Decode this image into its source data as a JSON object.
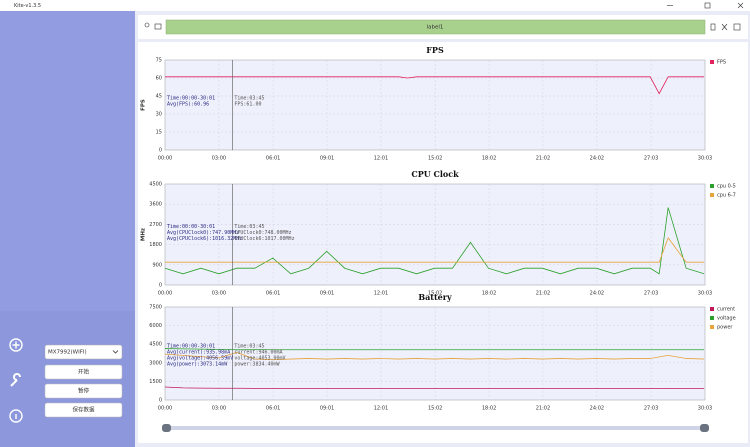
{
  "window": {
    "title": "Kite-v1.3.5"
  },
  "toolbar": {
    "label": "label1"
  },
  "sidebar": {
    "device": "MX7992(WIFI)",
    "buttons": [
      "开始",
      "暂停",
      "保存数据"
    ]
  },
  "chart_data": [
    {
      "type": "line",
      "title": "FPS",
      "ylabel": "FPS",
      "xlim": [
        0,
        1803
      ],
      "ylim": [
        0,
        75
      ],
      "yticks": [
        0,
        15,
        30,
        45,
        60,
        75
      ],
      "xticks": [
        {
          "value": 0,
          "label": "00:00"
        },
        {
          "value": 180,
          "label": "03:00"
        },
        {
          "value": 361,
          "label": "06:01"
        },
        {
          "value": 541,
          "label": "09:01"
        },
        {
          "value": 721,
          "label": "12:01"
        },
        {
          "value": 902,
          "label": "15:02"
        },
        {
          "value": 1082,
          "label": "18:02"
        },
        {
          "value": 1262,
          "label": "21:02"
        },
        {
          "value": 1442,
          "label": "24:02"
        },
        {
          "value": 1623,
          "label": "27:03"
        },
        {
          "value": 1803,
          "label": "30:03"
        }
      ],
      "grid": true,
      "cursor_x": 225,
      "stats": [
        "Time:00:00-30:01",
        "Avg(FPS):60.96"
      ],
      "cursor_label": [
        "Time:03:45",
        "FPS:61.00"
      ],
      "x": [
        0,
        60,
        120,
        180,
        240,
        300,
        360,
        420,
        480,
        540,
        600,
        660,
        720,
        780,
        810,
        840,
        900,
        960,
        1020,
        1080,
        1140,
        1200,
        1260,
        1320,
        1380,
        1440,
        1500,
        1560,
        1620,
        1650,
        1680,
        1740,
        1800
      ],
      "series": [
        {
          "name": "FPS",
          "color": "#e0245e",
          "values": [
            61,
            61,
            61,
            61,
            61,
            61,
            61,
            61,
            61,
            61,
            61,
            61,
            61,
            61,
            60,
            61,
            61,
            61,
            61,
            61,
            61,
            61,
            61,
            61,
            61,
            61,
            61,
            61,
            61,
            47,
            61,
            61,
            61
          ]
        }
      ]
    },
    {
      "type": "line",
      "title": "CPU Clock",
      "ylabel": "MHz",
      "xlim": [
        0,
        1803
      ],
      "ylim": [
        0,
        4500
      ],
      "yticks": [
        0,
        900,
        1800,
        2700,
        3600,
        4500
      ],
      "xticks": [
        {
          "value": 0,
          "label": "00:00"
        },
        {
          "value": 180,
          "label": "03:00"
        },
        {
          "value": 361,
          "label": "06:01"
        },
        {
          "value": 541,
          "label": "09:01"
        },
        {
          "value": 721,
          "label": "12:01"
        },
        {
          "value": 902,
          "label": "15:02"
        },
        {
          "value": 1082,
          "label": "18:02"
        },
        {
          "value": 1262,
          "label": "21:02"
        },
        {
          "value": 1442,
          "label": "24:02"
        },
        {
          "value": 1623,
          "label": "27:03"
        },
        {
          "value": 1803,
          "label": "30:03"
        }
      ],
      "grid": true,
      "cursor_x": 225,
      "stats": [
        "Time:00:00-30:01",
        "Avg(CPUClock0):747.90MHz",
        "Avg(CPUClock6):1016.32MHz"
      ],
      "cursor_label": [
        "Time:03:45",
        "CPUClock0:748.00MHz",
        "CPUClock6:1017.00MHz"
      ],
      "x": [
        0,
        60,
        120,
        180,
        240,
        300,
        360,
        420,
        480,
        540,
        600,
        660,
        720,
        780,
        840,
        900,
        960,
        1020,
        1080,
        1140,
        1200,
        1260,
        1320,
        1380,
        1440,
        1500,
        1560,
        1620,
        1650,
        1680,
        1740,
        1800
      ],
      "series": [
        {
          "name": "cpu 0-5",
          "color": "#2ca02c",
          "values": [
            748,
            500,
            748,
            500,
            748,
            748,
            1200,
            500,
            748,
            1500,
            748,
            500,
            748,
            748,
            500,
            748,
            748,
            1900,
            748,
            500,
            748,
            748,
            500,
            748,
            748,
            500,
            748,
            748,
            500,
            3450,
            748,
            500
          ]
        },
        {
          "name": "cpu 6-7",
          "color": "#e8a33d",
          "values": [
            1017,
            1017,
            1017,
            1017,
            1017,
            1017,
            1017,
            1017,
            1017,
            1017,
            1017,
            1017,
            1017,
            1017,
            1017,
            1017,
            1017,
            1017,
            1017,
            1017,
            1017,
            1017,
            1017,
            1017,
            1017,
            1017,
            1017,
            1017,
            1017,
            2100,
            1017,
            1017
          ]
        }
      ]
    },
    {
      "type": "line",
      "title": "Battery",
      "xlim": [
        0,
        1803
      ],
      "ylim": [
        0,
        7500
      ],
      "yticks": [
        0,
        1500,
        3000,
        4500,
        6000,
        7500
      ],
      "xticks": [
        {
          "value": 0,
          "label": "00:00"
        },
        {
          "value": 180,
          "label": "03:00"
        },
        {
          "value": 361,
          "label": "06:01"
        },
        {
          "value": 541,
          "label": "09:01"
        },
        {
          "value": 721,
          "label": "12:01"
        },
        {
          "value": 902,
          "label": "15:02"
        },
        {
          "value": 1082,
          "label": "18:02"
        },
        {
          "value": 1262,
          "label": "21:02"
        },
        {
          "value": 1442,
          "label": "24:02"
        },
        {
          "value": 1623,
          "label": "27:03"
        },
        {
          "value": 1803,
          "label": "30:03"
        }
      ],
      "grid": true,
      "cursor_x": 225,
      "stats": [
        "Time:00:00-30:01",
        "Avg(current):935.98mA",
        "Avg(voltage):4056.59mV",
        "Avg(power):3073.14mW"
      ],
      "cursor_label": [
        "Time:03:45",
        "current:946.00mA",
        "voltage:4053.00mV",
        "power:3834.40mW"
      ],
      "x": [
        0,
        60,
        120,
        180,
        240,
        300,
        360,
        420,
        480,
        540,
        600,
        660,
        720,
        780,
        840,
        900,
        960,
        1020,
        1080,
        1140,
        1200,
        1260,
        1320,
        1380,
        1440,
        1500,
        1560,
        1620,
        1680,
        1740,
        1800
      ],
      "series": [
        {
          "name": "current",
          "color": "#c2185b",
          "values": [
            1050,
            980,
            960,
            950,
            946,
            940,
            935,
            930,
            930,
            930,
            925,
            930,
            930,
            925,
            930,
            930,
            925,
            930,
            930,
            925,
            930,
            930,
            925,
            930,
            930,
            930,
            925,
            930,
            940,
            930,
            930
          ]
        },
        {
          "name": "voltage",
          "color": "#2ca02c",
          "values": [
            4150,
            4120,
            4100,
            4080,
            4053,
            4060,
            4055,
            4050,
            4050,
            4050,
            4050,
            4050,
            4050,
            4050,
            4050,
            4050,
            4050,
            4050,
            4050,
            4050,
            4050,
            4050,
            4050,
            4050,
            4050,
            4050,
            4050,
            4050,
            4050,
            4050,
            4050
          ]
        },
        {
          "name": "power",
          "color": "#e8a33d",
          "values": [
            3700,
            3600,
            3500,
            3400,
            3834,
            3300,
            3250,
            3300,
            3350,
            3300,
            3350,
            3300,
            3350,
            3300,
            3350,
            3300,
            3350,
            3300,
            3350,
            3300,
            3350,
            3300,
            3350,
            3300,
            3350,
            3300,
            3350,
            3350,
            3600,
            3350,
            3300
          ]
        }
      ]
    }
  ]
}
